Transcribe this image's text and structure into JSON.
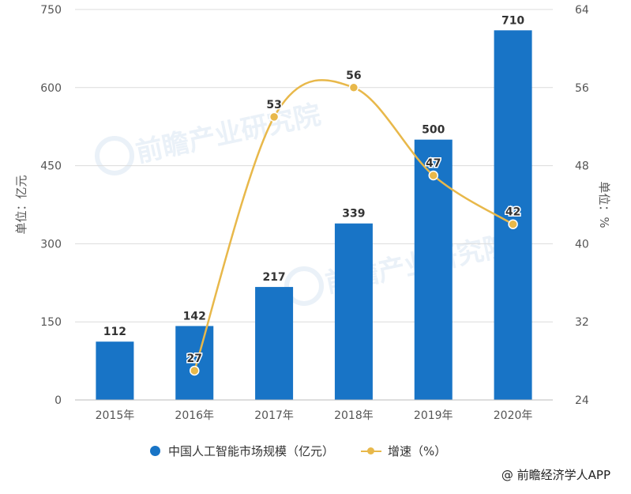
{
  "chart_data": {
    "type": "bar",
    "categories": [
      "2015年",
      "2016年",
      "2017年",
      "2018年",
      "2019年",
      "2020年"
    ],
    "series": [
      {
        "name": "中国人工智能市场规模（亿元）",
        "type": "bar",
        "axis": "left",
        "values": [
          112,
          142,
          217,
          339,
          500,
          710
        ]
      },
      {
        "name": "增速（%）",
        "type": "line",
        "axis": "right",
        "values": [
          null,
          27,
          53,
          56,
          47,
          42
        ]
      }
    ],
    "y_left": {
      "label": "单位：亿元",
      "ticks": [
        0,
        150,
        300,
        450,
        600,
        750
      ],
      "range": [
        0,
        750
      ]
    },
    "y_right": {
      "label": "单位：%",
      "ticks": [
        24,
        32,
        40,
        48,
        56,
        64
      ],
      "range": [
        24,
        64
      ]
    },
    "grid": true,
    "legend_position": "bottom",
    "colors": {
      "bar": "#1874c6",
      "line": "#e8b84a"
    }
  },
  "watermark": "前瞻产业研究院",
  "source": "@ 前瞻经济学人APP"
}
